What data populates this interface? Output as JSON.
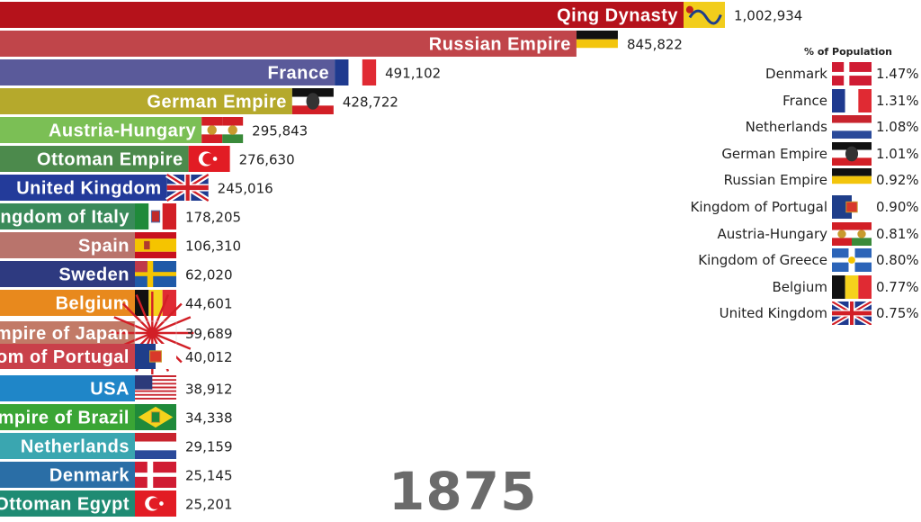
{
  "chart_data": {
    "type": "bar",
    "orientation": "horizontal",
    "year": "1875",
    "categories": [
      "Qing Dynasty",
      "Russian Empire",
      "France",
      "German Empire",
      "Austria-Hungary",
      "Ottoman Empire",
      "United Kingdom",
      "Kingdom of Italy",
      "Spain",
      "Sweden",
      "Belgium",
      "Empire of Japan",
      "Kingdom of Portugal",
      "USA",
      "Empire of Brazil",
      "Netherlands",
      "Denmark",
      "Ottoman Egypt"
    ],
    "values": [
      1002934,
      845822,
      491102,
      428722,
      295843,
      276630,
      245016,
      178205,
      106310,
      62020,
      44601,
      39689,
      40012,
      38912,
      34338,
      29159,
      25145,
      25201
    ],
    "value_labels": [
      "1,002,934",
      "845,822",
      "491,102",
      "428,722",
      "295,843",
      "276,630",
      "245,016",
      "178,205",
      "106,310",
      "62,020",
      "44,601",
      "39,689",
      "40,012",
      "38,912",
      "34,338",
      "29,159",
      "25,145",
      "25,201"
    ],
    "colors": [
      "#b5121b",
      "#c0454a",
      "#5a5a9a",
      "#b5a92c",
      "#7bbf55",
      "#4c8a4c",
      "#233b9a",
      "#3a8a5a",
      "#b9746c",
      "#2e3a80",
      "#e8891d",
      "#c27a67",
      "#c9404a",
      "#1f86c8",
      "#3aa535",
      "#3aa6b0",
      "#2a6ea6",
      "#1f8b73"
    ],
    "flags": [
      "qing",
      "russia",
      "france",
      "germany",
      "austria-hungary",
      "ottoman",
      "uk",
      "italy",
      "spain",
      "sweden",
      "belgium",
      "japan",
      "portugal",
      "usa",
      "brazil",
      "netherlands",
      "denmark",
      "ottoman"
    ]
  },
  "side_panel": {
    "title": "% of Population",
    "items": [
      {
        "name": "Denmark",
        "pct": "1.47%",
        "flag": "denmark"
      },
      {
        "name": "France",
        "pct": "1.31%",
        "flag": "france"
      },
      {
        "name": "Netherlands",
        "pct": "1.08%",
        "flag": "netherlands"
      },
      {
        "name": "German Empire",
        "pct": "1.01%",
        "flag": "germany"
      },
      {
        "name": "Russian Empire",
        "pct": "0.92%",
        "flag": "russia"
      },
      {
        "name": "Kingdom of Portugal",
        "pct": "0.90%",
        "flag": "portugal"
      },
      {
        "name": "Austria-Hungary",
        "pct": "0.81%",
        "flag": "austria-hungary"
      },
      {
        "name": "Kingdom of Greece",
        "pct": "0.80%",
        "flag": "greece"
      },
      {
        "name": "Belgium",
        "pct": "0.77%",
        "flag": "belgium"
      },
      {
        "name": "United Kingdom",
        "pct": "0.75%",
        "flag": "uk"
      }
    ]
  }
}
